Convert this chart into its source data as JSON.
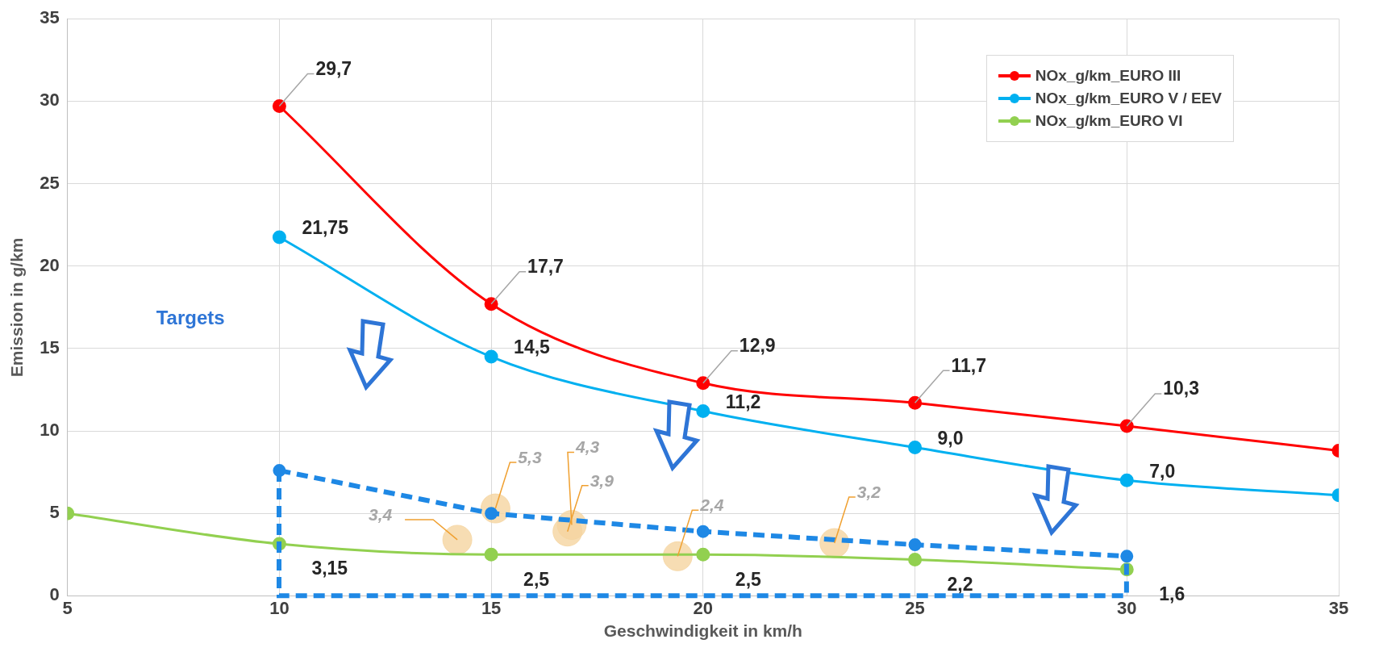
{
  "chart_data": {
    "type": "line",
    "xlabel": "Geschwindigkeit in km/h",
    "ylabel": "Emission in g/km",
    "xlim": [
      5,
      35
    ],
    "xticks": [
      5,
      10,
      15,
      20,
      25,
      30,
      35
    ],
    "ylim": [
      0,
      35
    ],
    "yticks": [
      0,
      5,
      10,
      15,
      20,
      25,
      30,
      35
    ],
    "grid": true,
    "legend": "top right",
    "marker": "circle",
    "annotations": [
      "Targets"
    ],
    "series": [
      {
        "name": "NOx_g/km_EURO III",
        "color": "#ff0000",
        "x": [
          10,
          15,
          20,
          25,
          30,
          35
        ],
        "values": [
          29.7,
          17.7,
          12.9,
          11.7,
          10.3,
          8.8
        ],
        "value_labels": [
          "29,7",
          "17,7",
          "12,9",
          "11,7",
          "10,3",
          null
        ]
      },
      {
        "name": "NOx_g/km_EURO V / EEV",
        "color": "#00b0f0",
        "x": [
          10,
          15,
          20,
          25,
          30,
          35
        ],
        "values": [
          21.75,
          14.5,
          11.2,
          9.0,
          7.0,
          6.1
        ],
        "value_labels": [
          "21,75",
          "14,5",
          "11,2",
          "9,0",
          "7,0",
          null
        ]
      },
      {
        "name": "NOx_g/km_EURO VI",
        "color": "#92d050",
        "x": [
          5,
          10,
          15,
          20,
          25,
          30
        ],
        "values": [
          5,
          3.15,
          2.5,
          2.5,
          2.2,
          1.6
        ],
        "value_labels": [
          null,
          "3,15",
          "2,5",
          "2,5",
          "2,2",
          "1,6"
        ]
      },
      {
        "color": "#1e88e5",
        "line_style": "dashed",
        "x": [
          10,
          15,
          20,
          25,
          30
        ],
        "values": [
          7.6,
          5.0,
          3.9,
          3.1,
          2.4
        ]
      },
      {
        "type": "scatter",
        "color": "#f5d5a0",
        "x": [
          14.2,
          15.1,
          16.8,
          16.9,
          19.4,
          23.1
        ],
        "values": [
          3.4,
          5.3,
          3.9,
          4.3,
          2.4,
          3.2
        ],
        "value_labels": [
          "3,4",
          "5,3",
          "3,9",
          "4,3",
          "2,4",
          "3,2"
        ]
      }
    ]
  }
}
